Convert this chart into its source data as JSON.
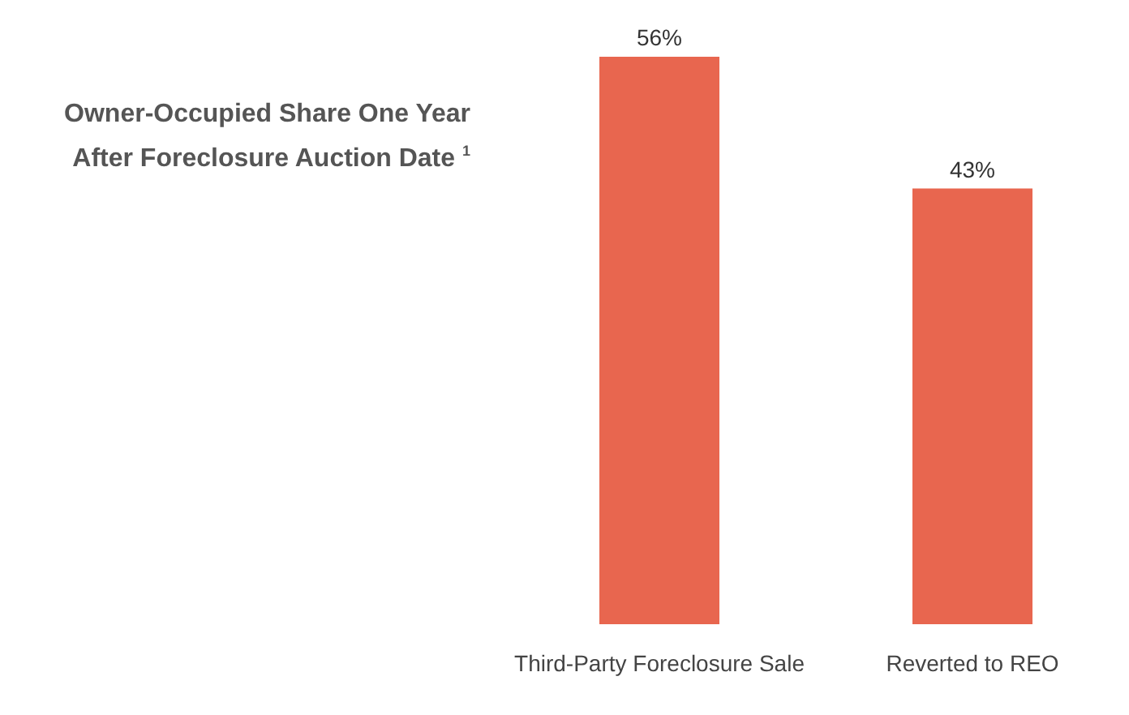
{
  "chart_data": {
    "type": "bar",
    "title": "Owner-Occupied Share One Year After Foreclosure Auction Date $^{1}$",
    "categories": [
      "Third-Party Foreclosure Sale",
      "Reverted to REO"
    ],
    "values": [
      56,
      43
    ],
    "color": "#e8664f",
    "value_labels": [
      "56%",
      "43%"
    ],
    "grid": false
  }
}
